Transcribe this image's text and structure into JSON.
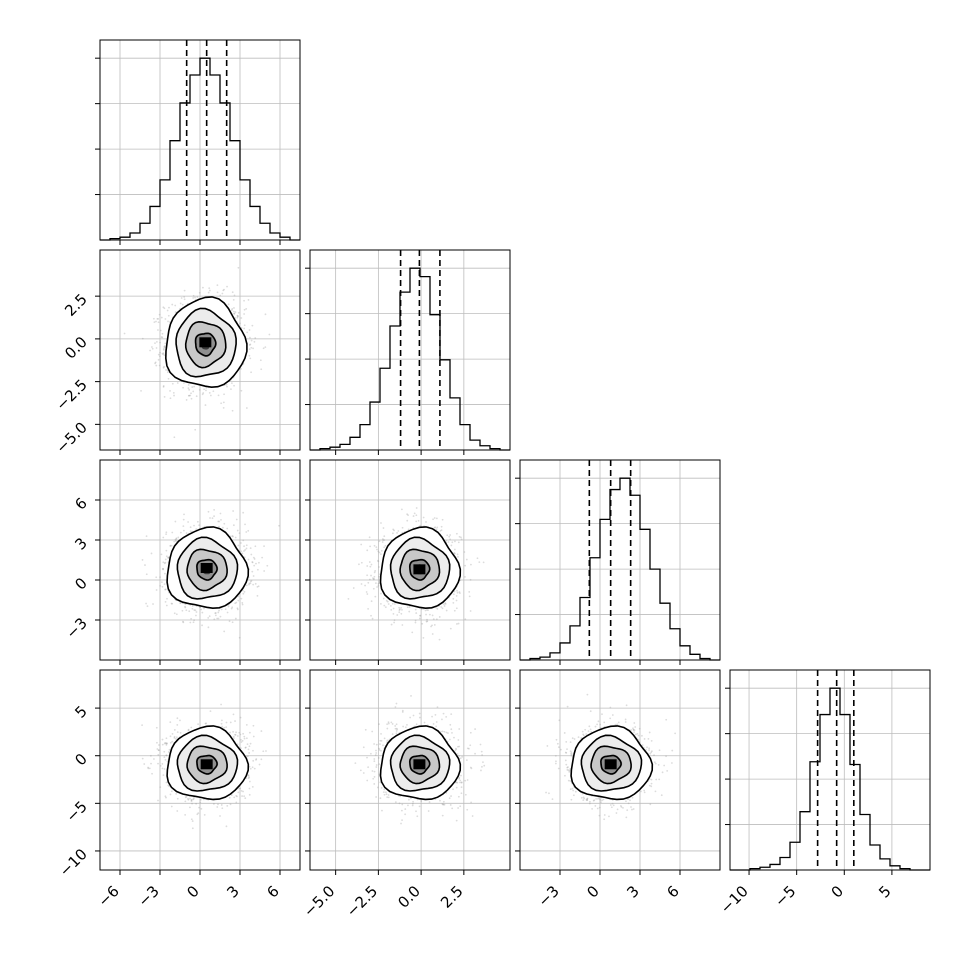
{
  "chart_data": {
    "type": "corner",
    "title": "",
    "grid": true,
    "parameters": [
      {
        "range": [
          -7.5,
          7.5
        ],
        "ticks": [
          -6,
          -3,
          0,
          3,
          6
        ],
        "tick_labels": [
          "−6",
          "−3",
          "0",
          "3",
          "6"
        ],
        "quantiles": [
          -1.0,
          0.5,
          2.0
        ],
        "hist_bins": [
          -7.5,
          -6.75,
          -6.0,
          -5.25,
          -4.5,
          -3.75,
          -3.0,
          -2.25,
          -1.5,
          -0.75,
          0.0,
          0.75,
          1.5,
          2.25,
          3.0,
          3.75,
          4.5,
          5.25,
          6.0,
          6.75,
          7.5
        ],
        "hist_counts": [
          0,
          1,
          2,
          5,
          12,
          24,
          43,
          71,
          98,
          118,
          130,
          118,
          98,
          71,
          43,
          24,
          12,
          5,
          2,
          0
        ]
      },
      {
        "range": [
          -6.5,
          5.2
        ],
        "ticks": [
          -5.0,
          -2.5,
          0.0,
          2.5
        ],
        "tick_labels": [
          "−5.0",
          "−2.5",
          "0.0",
          "2.5"
        ],
        "quantiles": [
          -1.2,
          -0.1,
          1.1
        ],
        "hist_bins": [
          -6.5,
          -5.915,
          -5.33,
          -4.745,
          -4.16,
          -3.575,
          -2.99,
          -2.405,
          -1.82,
          -1.235,
          -0.65,
          -0.065,
          0.52,
          1.105,
          1.69,
          2.275,
          2.86,
          3.445,
          4.03,
          4.615,
          5.2
        ],
        "hist_counts": [
          0,
          1,
          2,
          4,
          9,
          18,
          34,
          58,
          88,
          112,
          129,
          123,
          96,
          64,
          37,
          18,
          7,
          3,
          1,
          0
        ]
      },
      {
        "range": [
          -6.0,
          9.0
        ],
        "ticks": [
          -3,
          0,
          3,
          6
        ],
        "tick_labels": [
          "−3",
          "0",
          "3",
          "6"
        ],
        "quantiles": [
          -0.8,
          0.8,
          2.3
        ],
        "hist_bins": [
          -6.0,
          -5.25,
          -4.5,
          -3.75,
          -3.0,
          -2.25,
          -1.5,
          -0.75,
          0.0,
          0.75,
          1.5,
          2.25,
          3.0,
          3.75,
          4.5,
          5.25,
          6.0,
          6.75,
          7.5,
          8.25,
          9.0
        ],
        "hist_counts": [
          0,
          1,
          2,
          5,
          12,
          24,
          44,
          72,
          99,
          120,
          128,
          116,
          92,
          64,
          40,
          22,
          10,
          4,
          1,
          0
        ]
      },
      {
        "range": [
          -12.0,
          9.0
        ],
        "ticks": [
          -10,
          -5,
          0,
          5
        ],
        "tick_labels": [
          "−10",
          "−5",
          "0",
          "5"
        ],
        "quantiles": [
          -2.8,
          -0.8,
          1.0
        ],
        "hist_bins": [
          -12.0,
          -10.95,
          -9.9,
          -8.85,
          -7.8,
          -6.75,
          -5.7,
          -4.65,
          -3.6,
          -2.55,
          -1.5,
          -0.45,
          0.6,
          1.65,
          2.7,
          3.75,
          4.8,
          5.85,
          6.9,
          7.95,
          9.0
        ],
        "hist_counts": [
          0,
          0,
          1,
          2,
          4,
          9,
          20,
          42,
          78,
          112,
          131,
          112,
          76,
          40,
          18,
          8,
          3,
          1,
          0,
          0
        ]
      }
    ],
    "pairs": [
      {
        "row": 1,
        "col": 0,
        "center": [
          0.4,
          -0.3
        ],
        "spread": [
          1.5,
          1.3
        ],
        "rho": 0.0,
        "mode": [
          0.4,
          -0.2
        ]
      },
      {
        "row": 2,
        "col": 0,
        "center": [
          0.5,
          0.8
        ],
        "spread": [
          1.5,
          1.5
        ],
        "rho": 0.0,
        "mode": [
          0.5,
          0.9
        ]
      },
      {
        "row": 2,
        "col": 1,
        "center": [
          -0.1,
          0.8
        ],
        "spread": [
          1.15,
          1.5
        ],
        "rho": 0.0,
        "mode": [
          -0.1,
          0.8
        ]
      },
      {
        "row": 3,
        "col": 0,
        "center": [
          0.5,
          -0.9
        ],
        "spread": [
          1.5,
          1.9
        ],
        "rho": 0.0,
        "mode": [
          0.5,
          -0.9
        ]
      },
      {
        "row": 3,
        "col": 1,
        "center": [
          -0.1,
          -0.9
        ],
        "spread": [
          1.15,
          1.9
        ],
        "rho": 0.0,
        "mode": [
          -0.1,
          -0.9
        ]
      },
      {
        "row": 3,
        "col": 2,
        "center": [
          0.8,
          -0.9
        ],
        "spread": [
          1.5,
          1.9
        ],
        "rho": 0.0,
        "mode": [
          0.8,
          -0.9
        ]
      }
    ]
  }
}
